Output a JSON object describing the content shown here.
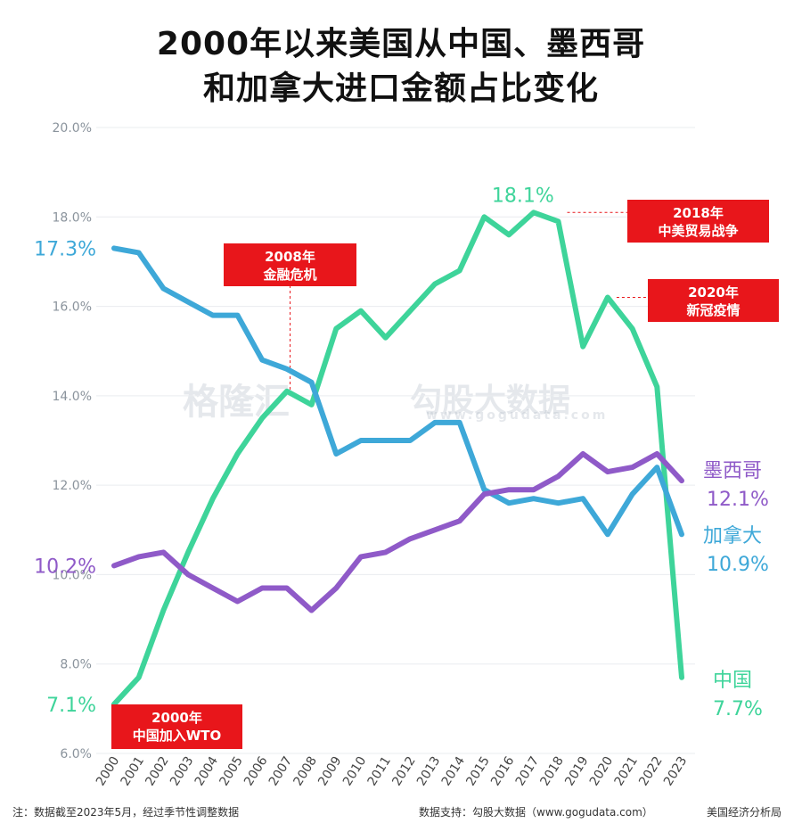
{
  "title": [
    "2000年以来美国从中国、墨西哥",
    "和加拿大进口金额占比变化"
  ],
  "chart_data": {
    "type": "line",
    "x": [
      "2000",
      "2001",
      "2002",
      "2003",
      "2004",
      "2005",
      "2006",
      "2007",
      "2008",
      "2009",
      "2010",
      "2011",
      "2012",
      "2013",
      "2014",
      "2015",
      "2016",
      "2017",
      "2018",
      "2019",
      "2020",
      "2021",
      "2022",
      "2023"
    ],
    "ylim": [
      6.0,
      20.0
    ],
    "yticks": [
      "6.0%",
      "8.0%",
      "10.0%",
      "12.0%",
      "14.0%",
      "16.0%",
      "18.0%",
      "20.0%"
    ],
    "grid": true,
    "series": [
      {
        "name": "中国",
        "color": "#3ed49a",
        "values": [
          7.1,
          7.7,
          9.2,
          10.5,
          11.7,
          12.7,
          13.5,
          14.1,
          13.8,
          15.5,
          15.9,
          15.3,
          15.9,
          16.5,
          16.8,
          18.0,
          17.6,
          18.1,
          17.9,
          15.1,
          16.2,
          15.5,
          14.2,
          7.7
        ]
      },
      {
        "name": "加拿大",
        "color": "#3ea8d8",
        "values": [
          17.3,
          17.2,
          16.4,
          16.1,
          15.8,
          15.8,
          14.8,
          14.6,
          14.3,
          12.7,
          13.0,
          13.0,
          13.0,
          13.4,
          13.4,
          11.9,
          11.6,
          11.7,
          11.6,
          11.7,
          10.9,
          11.8,
          12.4,
          10.9
        ]
      },
      {
        "name": "墨西哥",
        "color": "#8f5ac8",
        "values": [
          10.2,
          10.4,
          10.5,
          10.0,
          9.7,
          9.4,
          9.7,
          9.7,
          9.2,
          9.7,
          10.4,
          10.5,
          10.8,
          11.0,
          11.2,
          11.8,
          11.9,
          11.9,
          12.2,
          12.7,
          12.3,
          12.4,
          12.7,
          12.1
        ]
      }
    ],
    "start_labels": [
      {
        "series": "中国",
        "text": "7.1%"
      },
      {
        "series": "加拿大",
        "text": "17.3%"
      },
      {
        "series": "墨西哥",
        "text": "10.2%"
      }
    ],
    "end_labels": [
      {
        "series": "墨西哥",
        "name": "墨西哥",
        "value": "12.1%"
      },
      {
        "series": "加拿大",
        "name": "加拿大",
        "value": "10.9%"
      },
      {
        "series": "中国",
        "name": "中国",
        "value": "7.7%"
      }
    ],
    "peak_label": {
      "series": "中国",
      "year": "2017",
      "text": "18.1%"
    },
    "annotations": [
      {
        "lines": [
          "2000年",
          "中国加入WTO"
        ],
        "year": "2000",
        "placement": "below"
      },
      {
        "lines": [
          "2008年",
          "金融危机"
        ],
        "year": "2008",
        "placement": "above"
      },
      {
        "lines": [
          "2018年",
          "中美贸易战争"
        ],
        "year": "2018",
        "placement": "right"
      },
      {
        "lines": [
          "2020年",
          "新冠疫情"
        ],
        "year": "2020",
        "placement": "right"
      }
    ],
    "annotation_color": "#e8161b"
  },
  "watermark": {
    "brand": "格隆汇",
    "name": "勾股大数据",
    "url": "www.gogudata.com"
  },
  "footer": {
    "note": "注：数据截至2023年5月，经过季节性调整数据",
    "source": "数据支持：勾股大数据（www.gogudata.com）",
    "publisher": "美国经济分析局"
  }
}
